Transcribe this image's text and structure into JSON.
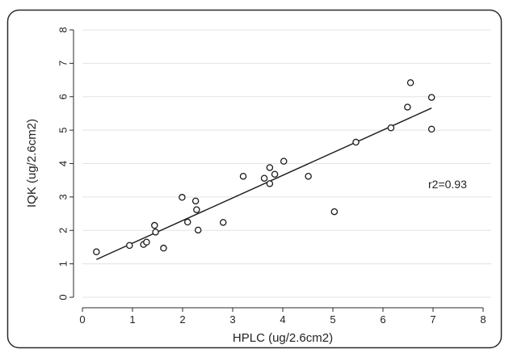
{
  "chart_data": {
    "type": "scatter",
    "title": "",
    "xlabel": "HPLC (ug/2.6cm2)",
    "ylabel": "IQK (ug/2.6cm2)",
    "xlim": [
      0,
      8
    ],
    "ylim": [
      0,
      8
    ],
    "xticks": [
      "0",
      "1",
      "2",
      "3",
      "4",
      "5",
      "6",
      "7",
      "8"
    ],
    "yticks": [
      "0",
      "1",
      "2",
      "3",
      "4",
      "5",
      "6",
      "7",
      "8"
    ],
    "grid": "horizontal",
    "annotation": "r2=0.93",
    "points": [
      {
        "x": 0.28,
        "y": 1.36
      },
      {
        "x": 0.94,
        "y": 1.55
      },
      {
        "x": 1.22,
        "y": 1.58
      },
      {
        "x": 1.28,
        "y": 1.65
      },
      {
        "x": 1.44,
        "y": 2.15
      },
      {
        "x": 1.46,
        "y": 1.95
      },
      {
        "x": 1.62,
        "y": 1.47
      },
      {
        "x": 1.99,
        "y": 2.99
      },
      {
        "x": 2.1,
        "y": 2.25
      },
      {
        "x": 2.26,
        "y": 2.88
      },
      {
        "x": 2.28,
        "y": 2.62
      },
      {
        "x": 2.31,
        "y": 2.01
      },
      {
        "x": 2.81,
        "y": 2.24
      },
      {
        "x": 3.21,
        "y": 3.62
      },
      {
        "x": 3.63,
        "y": 3.56
      },
      {
        "x": 3.74,
        "y": 3.88
      },
      {
        "x": 3.74,
        "y": 3.4
      },
      {
        "x": 3.84,
        "y": 3.68
      },
      {
        "x": 4.02,
        "y": 4.07
      },
      {
        "x": 4.51,
        "y": 3.62
      },
      {
        "x": 5.03,
        "y": 2.56
      },
      {
        "x": 5.46,
        "y": 4.64
      },
      {
        "x": 6.16,
        "y": 5.07
      },
      {
        "x": 6.49,
        "y": 5.69
      },
      {
        "x": 6.55,
        "y": 6.42
      },
      {
        "x": 6.97,
        "y": 5.98
      },
      {
        "x": 6.97,
        "y": 5.03
      }
    ],
    "fit_line": {
      "x1": 0.28,
      "y1": 1.13,
      "x2": 6.97,
      "y2": 5.66
    },
    "colors": {
      "marker": "#1a1a1a",
      "line": "#1a1a1a",
      "grid": "#e3e3e3",
      "frame": "#2a2a2a"
    }
  }
}
